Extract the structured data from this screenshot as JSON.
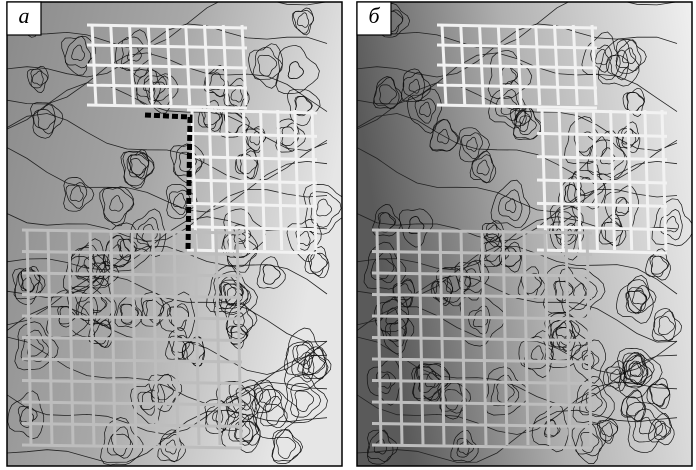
{
  "panels": [
    {
      "label": "а"
    },
    {
      "label": "б"
    }
  ]
}
